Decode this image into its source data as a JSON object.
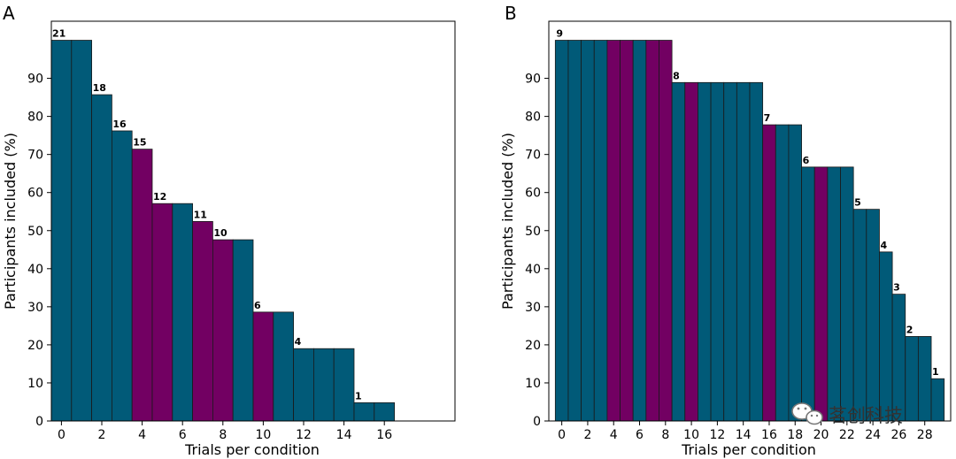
{
  "colors": {
    "teal": "#015a78",
    "purple": "#720062",
    "edge": "#1a1a1a"
  },
  "watermark": {
    "icon": "wechat-icon",
    "text": "茗创科技"
  },
  "chart_data": [
    {
      "panel": "A",
      "type": "bar",
      "xlabel": "Trials per condition",
      "ylabel": "Participants included (%)",
      "xlim": [
        -0.5,
        19.5
      ],
      "ylim": [
        0,
        105
      ],
      "xticks": [
        0,
        2,
        4,
        6,
        8,
        10,
        12,
        14,
        16
      ],
      "yticks": [
        0,
        10,
        20,
        30,
        40,
        50,
        60,
        70,
        80,
        90
      ],
      "x": [
        0,
        1,
        2,
        3,
        4,
        5,
        6,
        7,
        8,
        9,
        10,
        11,
        12,
        13,
        14,
        15,
        16
      ],
      "values": [
        100,
        100,
        85.7,
        76.2,
        71.4,
        57.1,
        57.1,
        52.4,
        47.6,
        47.6,
        28.6,
        28.6,
        19.0,
        19.0,
        19.0,
        4.8,
        4.8
      ],
      "highlight": [
        0,
        0,
        0,
        0,
        1,
        1,
        0,
        1,
        1,
        0,
        1,
        0,
        0,
        0,
        0,
        0,
        0
      ],
      "labels": [
        {
          "x": 0,
          "text": "21"
        },
        {
          "x": 2,
          "text": "18"
        },
        {
          "x": 3,
          "text": "16"
        },
        {
          "x": 4,
          "text": "15"
        },
        {
          "x": 5,
          "text": "12"
        },
        {
          "x": 7,
          "text": "11"
        },
        {
          "x": 8,
          "text": "10"
        },
        {
          "x": 10,
          "text": "6"
        },
        {
          "x": 12,
          "text": "4"
        },
        {
          "x": 15,
          "text": "1"
        }
      ]
    },
    {
      "panel": "B",
      "type": "bar",
      "xlabel": "Trials per condition",
      "ylabel": "Participants included (%)",
      "xlim": [
        -1,
        30
      ],
      "ylim": [
        0,
        105
      ],
      "xticks": [
        0,
        2,
        4,
        6,
        8,
        10,
        12,
        14,
        16,
        18,
        20,
        22,
        24,
        26,
        28
      ],
      "yticks": [
        0,
        10,
        20,
        30,
        40,
        50,
        60,
        70,
        80,
        90
      ],
      "x": [
        0,
        1,
        2,
        3,
        4,
        5,
        6,
        7,
        8,
        9,
        10,
        11,
        12,
        13,
        14,
        15,
        16,
        17,
        18,
        19,
        20,
        21,
        22,
        23,
        24,
        25,
        26,
        27,
        28,
        29
      ],
      "values": [
        100,
        100,
        100,
        100,
        100,
        100,
        100,
        100,
        100,
        88.9,
        88.9,
        88.9,
        88.9,
        88.9,
        88.9,
        88.9,
        77.8,
        77.8,
        77.8,
        66.7,
        66.7,
        66.7,
        66.7,
        55.6,
        55.6,
        44.4,
        33.3,
        22.2,
        22.2,
        11.1
      ],
      "highlight": [
        0,
        0,
        0,
        0,
        1,
        1,
        0,
        1,
        1,
        0,
        1,
        0,
        0,
        0,
        0,
        0,
        1,
        0,
        0,
        0,
        1,
        0,
        0,
        0,
        0,
        0,
        0,
        0,
        0,
        0
      ],
      "labels": [
        {
          "x": 0,
          "text": "9"
        },
        {
          "x": 9,
          "text": "8"
        },
        {
          "x": 16,
          "text": "7"
        },
        {
          "x": 19,
          "text": "6"
        },
        {
          "x": 23,
          "text": "5"
        },
        {
          "x": 25,
          "text": "4"
        },
        {
          "x": 26,
          "text": "3"
        },
        {
          "x": 27,
          "text": "2"
        },
        {
          "x": 29,
          "text": "1"
        }
      ]
    }
  ]
}
